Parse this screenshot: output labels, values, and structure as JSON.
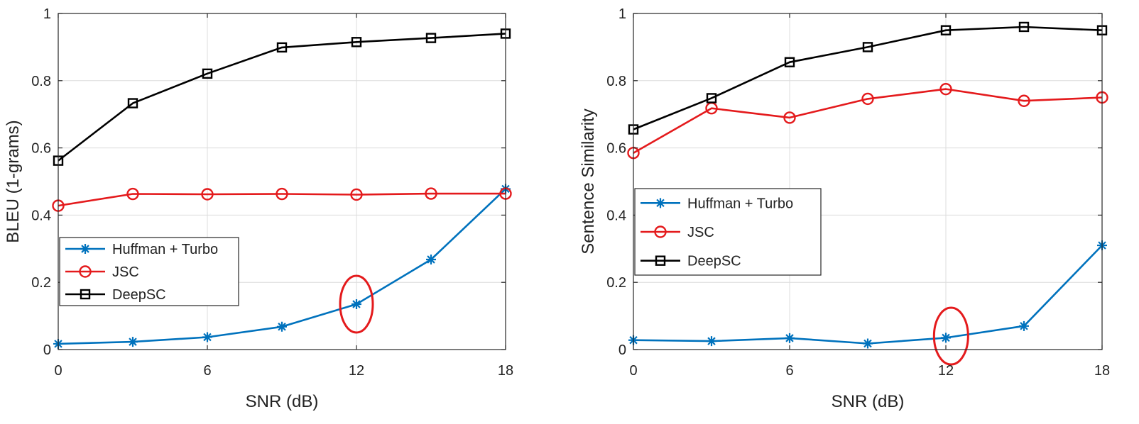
{
  "chart_data": [
    {
      "type": "line",
      "xlabel": "SNR (dB)",
      "ylabel": "BLEU (1-grams)",
      "xlim": [
        0,
        18
      ],
      "ylim": [
        0,
        1
      ],
      "xticks": [
        0,
        6,
        12,
        18
      ],
      "xtick_labels": [
        "0",
        "6",
        "12",
        "18"
      ],
      "yticks": [
        0,
        0.2,
        0.4,
        0.6,
        0.8,
        1
      ],
      "ytick_labels": [
        "0",
        "0.2",
        "0.4",
        "0.6",
        "0.8",
        "1"
      ],
      "grid": true,
      "legend_position": "lower-left",
      "x": [
        0,
        3,
        6,
        9,
        12,
        15,
        18
      ],
      "series": [
        {
          "name": "Huffman + Turbo",
          "marker": "star",
          "color": "#0072BD",
          "values": [
            0.017,
            0.023,
            0.037,
            0.068,
            0.135,
            0.268,
            0.478
          ]
        },
        {
          "name": "JSC",
          "marker": "circle",
          "color": "#E41A1C",
          "values": [
            0.428,
            0.463,
            0.462,
            0.463,
            0.461,
            0.464,
            0.464
          ]
        },
        {
          "name": "DeepSC",
          "marker": "square",
          "color": "#000000",
          "values": [
            0.562,
            0.733,
            0.821,
            0.899,
            0.915,
            0.927,
            0.94
          ]
        }
      ],
      "annotations": [
        {
          "type": "ellipse",
          "color": "#E41A1C",
          "x": 12,
          "y": 0.135,
          "note": "highlighted point"
        }
      ]
    },
    {
      "type": "line",
      "xlabel": "SNR (dB)",
      "ylabel": "Sentence Similarity",
      "xlim": [
        0,
        18
      ],
      "ylim": [
        0,
        1
      ],
      "xticks": [
        0,
        6,
        12,
        18
      ],
      "xtick_labels": [
        "0",
        "6",
        "12",
        "18"
      ],
      "yticks": [
        0,
        0.2,
        0.4,
        0.6,
        0.8,
        1
      ],
      "ytick_labels": [
        "0",
        "0.2",
        "0.4",
        "0.6",
        "0.8",
        "1"
      ],
      "grid": true,
      "legend_position": "middle-left",
      "x": [
        0,
        3,
        6,
        9,
        12,
        15,
        18
      ],
      "series": [
        {
          "name": "Huffman + Turbo",
          "marker": "star",
          "color": "#0072BD",
          "values": [
            0.028,
            0.025,
            0.034,
            0.018,
            0.035,
            0.07,
            0.31
          ]
        },
        {
          "name": "JSC",
          "marker": "circle",
          "color": "#E41A1C",
          "values": [
            0.585,
            0.718,
            0.69,
            0.746,
            0.775,
            0.74,
            0.75
          ]
        },
        {
          "name": "DeepSC",
          "marker": "square",
          "color": "#000000",
          "values": [
            0.655,
            0.748,
            0.855,
            0.9,
            0.95,
            0.96,
            0.95
          ]
        }
      ],
      "annotations": [
        {
          "type": "ellipse",
          "color": "#E41A1C",
          "x": 12.2,
          "y": 0.04,
          "note": "highlighted point"
        }
      ]
    }
  ]
}
